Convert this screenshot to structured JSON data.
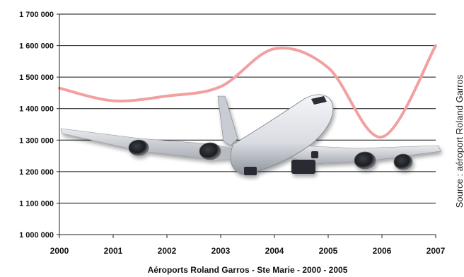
{
  "chart_data": {
    "type": "line",
    "title": "",
    "xlabel": "Aéroports Roland Garros - Ste Marie -  2000 - 2005",
    "ylabel": "",
    "source": "Source : aéroport Roland Garros",
    "ylim": [
      1000000,
      1700000
    ],
    "xlim": [
      2000,
      2007
    ],
    "yticks": [
      1000000,
      1100000,
      1200000,
      1300000,
      1400000,
      1500000,
      1600000,
      1700000
    ],
    "ytick_labels": [
      "1 000 000",
      "1 100 000",
      "1 200 000",
      "1 300 000",
      "1 400 000",
      "1 500 000",
      "1 600 000",
      "1 700 000"
    ],
    "xticks": [
      "2000",
      "2001",
      "2002",
      "2003",
      "2004",
      "2005",
      "2006",
      "2007"
    ],
    "grid": true,
    "series": [
      {
        "name": "",
        "color": "#f2a0a0",
        "x": [
          2000,
          2001,
          2002,
          2003,
          2004,
          2005,
          2006,
          2007
        ],
        "values": [
          1465000,
          1425000,
          1440000,
          1470000,
          1590000,
          1530000,
          1310000,
          1600000
        ]
      }
    ],
    "background_image": "airplane-photo"
  }
}
